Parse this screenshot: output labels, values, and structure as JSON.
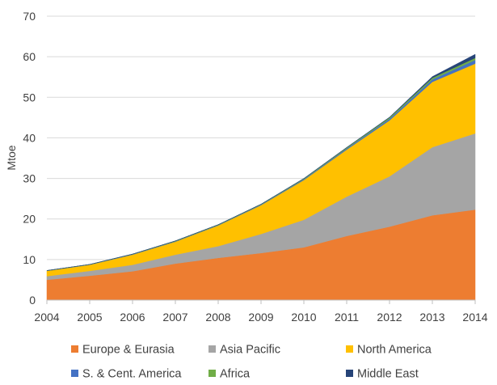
{
  "chart_data": {
    "type": "area",
    "stacked": true,
    "title": "",
    "xlabel": "",
    "ylabel": "Mtoe",
    "ylim": [
      0,
      70
    ],
    "yticks": [
      0,
      10,
      20,
      30,
      40,
      50,
      60,
      70
    ],
    "grid": true,
    "legend_position": "bottom",
    "categories": [
      "2004",
      "2005",
      "2006",
      "2007",
      "2008",
      "2009",
      "2010",
      "2011",
      "2012",
      "2013",
      "2014"
    ],
    "series": [
      {
        "name": "Europe & Eurasia",
        "color": "#ED7D31",
        "values": [
          5.0,
          6.0,
          7.1,
          9.0,
          10.4,
          11.6,
          13.0,
          15.8,
          18.1,
          20.9,
          22.3
        ]
      },
      {
        "name": "Asia Pacific",
        "color": "#A5A5A5",
        "values": [
          0.9,
          1.2,
          1.6,
          2.2,
          2.9,
          4.7,
          6.8,
          9.7,
          12.4,
          16.8,
          18.8
        ]
      },
      {
        "name": "North America",
        "color": "#FFC000",
        "values": [
          1.3,
          1.5,
          2.5,
          3.2,
          5.1,
          7.1,
          9.8,
          11.6,
          13.8,
          16.1,
          17.2
        ]
      },
      {
        "name": "S. & Cent. America",
        "color": "#4472C4",
        "values": [
          0.05,
          0.05,
          0.1,
          0.1,
          0.1,
          0.15,
          0.2,
          0.3,
          0.4,
          0.6,
          0.9
        ]
      },
      {
        "name": "Africa",
        "color": "#70AD47",
        "values": [
          0.05,
          0.05,
          0.05,
          0.1,
          0.1,
          0.1,
          0.15,
          0.2,
          0.3,
          0.4,
          0.5
        ]
      },
      {
        "name": "Middle East",
        "color": "#264478",
        "values": [
          0.0,
          0.0,
          0.0,
          0.0,
          0.0,
          0.0,
          0.05,
          0.05,
          0.1,
          0.3,
          0.9
        ]
      }
    ]
  }
}
